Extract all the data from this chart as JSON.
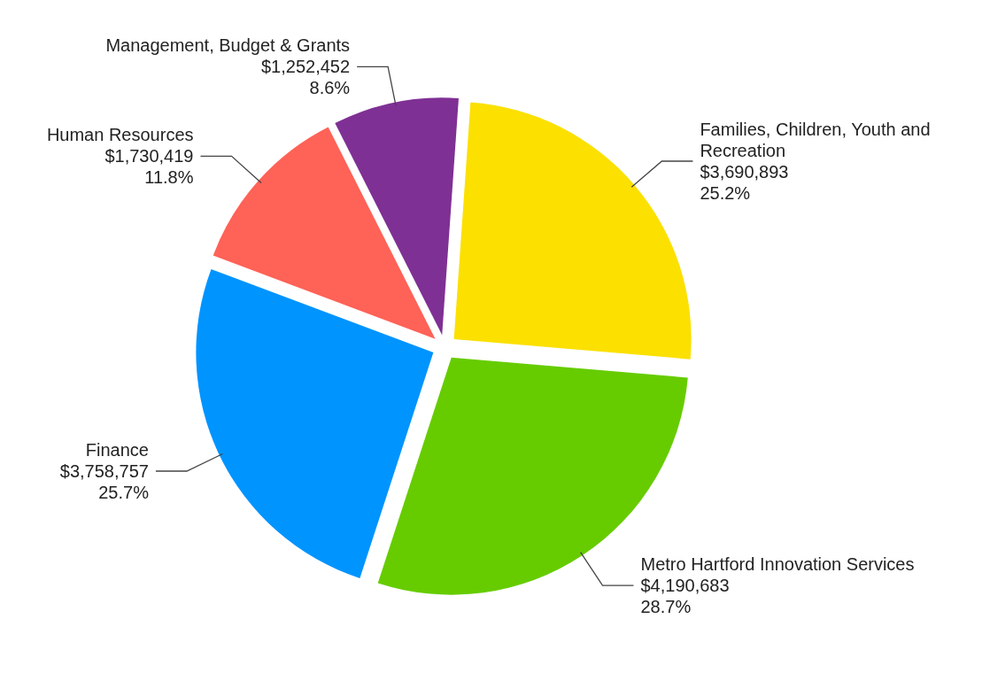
{
  "chart_data": {
    "type": "pie",
    "categories": [
      "Families, Children, Youth and Recreation",
      "Metro Hartford Innovation Services",
      "Finance",
      "Human Resources",
      "Management, Budget & Grants"
    ],
    "values": [
      3690893,
      4190683,
      3758757,
      1730419,
      1252452
    ],
    "colors": [
      "#fbe000",
      "#66cc00",
      "#0094ff",
      "#ff6257",
      "#7f3094"
    ],
    "value_labels": [
      "$3,690,893\n25.2%",
      "$4,190,683\n28.7%",
      "$3,758,757\n25.7%",
      "$1,730,419\n11.8%",
      "$1,252,452\n8.6%"
    ]
  }
}
